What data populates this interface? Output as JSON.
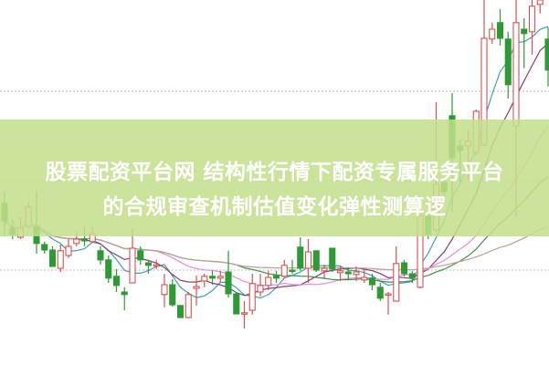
{
  "overlay_title": {
    "line1": "股票配资平台网 结构性行情下配资专属服务平台",
    "line2": "的合规审查机制估值变化弹性测算逻"
  },
  "colors": {
    "up": "#d9534f",
    "down": "#2e9a35",
    "banner": "#c4de8c",
    "ma": [
      "#3f9fb8",
      "#8a3a70",
      "#e68de0",
      "#3d8f4a",
      "#b9a294"
    ],
    "grid": "#bdbdbd"
  },
  "chart_data": {
    "type": "candlestick",
    "title": "",
    "xlabel": "",
    "ylabel": "",
    "ylim": [
      0,
      100
    ],
    "grid": "horizontal dotted",
    "moving_averages": [
      5,
      10,
      20,
      30,
      60
    ],
    "ohlc_order": [
      "open",
      "high",
      "low",
      "close"
    ],
    "candles": [
      [
        44.3,
        47.5,
        35.5,
        39.5
      ],
      [
        37.5,
        40,
        34.5,
        35.8
      ],
      [
        35,
        40.5,
        34.5,
        37.5
      ],
      [
        38,
        44.3,
        37.5,
        43.3
      ],
      [
        38,
        47.5,
        30.5,
        33.3
      ],
      [
        33,
        33.8,
        30.5,
        31.5
      ],
      [
        31.5,
        32.5,
        27,
        27
      ],
      [
        26.5,
        33,
        25.5,
        31.3
      ],
      [
        30,
        34.5,
        29.3,
        32.5
      ],
      [
        33.3,
        36.3,
        32.5,
        34.5
      ],
      [
        34.5,
        38,
        32.5,
        34
      ],
      [
        33.8,
        38,
        33.5,
        36
      ],
      [
        31.3,
        32.5,
        27.5,
        28.8
      ],
      [
        28.8,
        30,
        22.5,
        23.8
      ],
      [
        24.3,
        26.3,
        20,
        21.8
      ],
      [
        20,
        21.3,
        15,
        19.3
      ],
      [
        22.5,
        37.5,
        22.5,
        32
      ],
      [
        31.3,
        32.5,
        27.5,
        28.8
      ],
      [
        28,
        28.8,
        25,
        27.3
      ],
      [
        27.3,
        28.8,
        26.3,
        27.5
      ],
      [
        19.3,
        25,
        15.8,
        22
      ],
      [
        22,
        23.5,
        16,
        16.5
      ],
      [
        16.3,
        16.3,
        13,
        13
      ],
      [
        13,
        20,
        13,
        19.3
      ],
      [
        21,
        24.5,
        16.3,
        21.5
      ],
      [
        23,
        25,
        21.3,
        24.3
      ],
      [
        24.3,
        25.8,
        22,
        23.8
      ],
      [
        23.8,
        25.8,
        22.5,
        24.3
      ],
      [
        25.5,
        31.3,
        18.5,
        19.5
      ],
      [
        19.5,
        20,
        14,
        14
      ],
      [
        14,
        17.5,
        10,
        14.3
      ],
      [
        15,
        25,
        13.8,
        22.3
      ],
      [
        20,
        25,
        18.8,
        21.8
      ],
      [
        21.8,
        25.8,
        20.5,
        24
      ],
      [
        24.5,
        25.8,
        22.5,
        23.8
      ],
      [
        24.3,
        28.8,
        23.8,
        27.3
      ],
      [
        26,
        28.8,
        25,
        25.8
      ],
      [
        32.3,
        35,
        25.8,
        26.5
      ],
      [
        26.5,
        34.5,
        22.5,
        31
      ],
      [
        31.3,
        31.3,
        25.5,
        26
      ],
      [
        25.8,
        27.5,
        23.8,
        26.5
      ],
      [
        32,
        32,
        25.5,
        26.3
      ],
      [
        25.3,
        27,
        23,
        25.8
      ],
      [
        25.5,
        26.8,
        23.5,
        25
      ],
      [
        24.8,
        27,
        23,
        25.5
      ],
      [
        23.3,
        26.3,
        22.5,
        24
      ],
      [
        23.8,
        25,
        20.5,
        22
      ],
      [
        21.3,
        22.5,
        17.5,
        18.3
      ],
      [
        19.3,
        20,
        13.8,
        19.5
      ],
      [
        17.5,
        32.5,
        17.5,
        27.8
      ],
      [
        28,
        28.8,
        24.3,
        25
      ],
      [
        25,
        25.8,
        22.5,
        23.8
      ],
      [
        21.3,
        41.3,
        21,
        40.8
      ],
      [
        40.8,
        42.5,
        34.5,
        35.8
      ],
      [
        37,
        72,
        36.3,
        49.5
      ],
      [
        50,
        51.3,
        46.3,
        47.5
      ],
      [
        68.3,
        74.5,
        41.8,
        56.8
      ],
      [
        60,
        61.8,
        50,
        58.8
      ],
      [
        60,
        64.3,
        50.8,
        61.3
      ],
      [
        58.3,
        70,
        57.5,
        69.5
      ],
      [
        60.3,
        100,
        60,
        89.5
      ],
      [
        89.3,
        93.8,
        88,
        92
      ],
      [
        93.8,
        97.5,
        87.5,
        89.5
      ],
      [
        89.3,
        91.3,
        73,
        76.8
      ],
      [
        65.5,
        100,
        40.8,
        93.8
      ],
      [
        92,
        95,
        81.3,
        90.8
      ],
      [
        91.3,
        100,
        85,
        98.3
      ],
      [
        98.8,
        100,
        96.3,
        100
      ],
      [
        89.3,
        92.5,
        76.3,
        80.8
      ]
    ]
  }
}
